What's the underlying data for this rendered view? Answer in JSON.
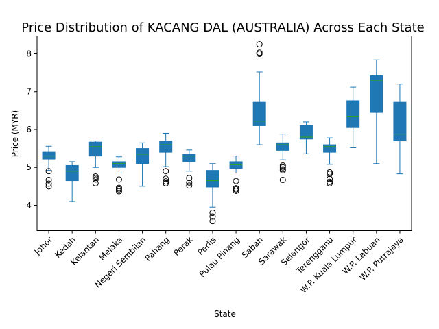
{
  "chart_data": {
    "type": "box",
    "title": "Price Distribution of KACANG DAL (AUSTRALIA) Across Each State",
    "xlabel": "State",
    "ylabel": "Price (MYR)",
    "ylim": [
      3.33,
      8.47
    ],
    "yticks": [
      4,
      5,
      6,
      7,
      8
    ],
    "grid": false,
    "colors": {
      "box": "#1f77b4",
      "median": "#2ca02c",
      "whisker": "#1f77b4",
      "flier": "#000000"
    },
    "categories": [
      "Johor",
      "Kedah",
      "Kelantan",
      "Melaka",
      "Negeri Sembilan",
      "Pahang",
      "Perak",
      "Perlis",
      "Pulau Pinang",
      "Sabah",
      "Sarawak",
      "Selangor",
      "Terengganu",
      "W.P. Kuala Lumpur",
      "W.P. Labuan",
      "W.P. Putrajaya"
    ],
    "boxes": [
      {
        "whislo": 4.92,
        "q1": 5.22,
        "med": 5.3,
        "q3": 5.4,
        "whishi": 5.56,
        "fliers": [
          4.9,
          4.67,
          4.57,
          4.5
        ]
      },
      {
        "whislo": 4.1,
        "q1": 4.65,
        "med": 4.9,
        "q3": 5.05,
        "whishi": 5.15,
        "fliers": []
      },
      {
        "whislo": 5.0,
        "q1": 5.3,
        "med": 5.55,
        "q3": 5.67,
        "whishi": 5.7,
        "fliers": [
          4.76,
          4.72,
          4.68,
          4.58
        ]
      },
      {
        "whislo": 4.85,
        "q1": 5.0,
        "med": 5.1,
        "q3": 5.15,
        "whishi": 5.28,
        "fliers": [
          4.68,
          4.46,
          4.42,
          4.37
        ]
      },
      {
        "whislo": 4.5,
        "q1": 5.1,
        "med": 5.35,
        "q3": 5.5,
        "whishi": 5.65,
        "fliers": []
      },
      {
        "whislo": 5.02,
        "q1": 5.4,
        "med": 5.6,
        "q3": 5.7,
        "whishi": 5.9,
        "fliers": [
          4.9,
          4.7,
          4.63,
          4.58
        ]
      },
      {
        "whislo": 4.9,
        "q1": 5.15,
        "med": 5.3,
        "q3": 5.35,
        "whishi": 5.46,
        "fliers": [
          4.72,
          4.6,
          4.52
        ]
      },
      {
        "whislo": 3.95,
        "q1": 4.48,
        "med": 4.65,
        "q3": 4.92,
        "whishi": 5.1,
        "fliers": [
          3.8,
          3.7,
          3.58
        ]
      },
      {
        "whislo": 4.85,
        "q1": 4.97,
        "med": 5.07,
        "q3": 5.15,
        "whishi": 5.3,
        "fliers": [
          4.64,
          4.45,
          4.42,
          4.38
        ]
      },
      {
        "whislo": 5.6,
        "q1": 6.1,
        "med": 6.22,
        "q3": 6.72,
        "whishi": 7.52,
        "fliers": [
          8.25,
          8.03,
          8.0
        ]
      },
      {
        "whislo": 5.2,
        "q1": 5.45,
        "med": 5.6,
        "q3": 5.65,
        "whishi": 5.88,
        "fliers": [
          5.05,
          5.0,
          4.95,
          4.92,
          4.67
        ]
      },
      {
        "whislo": 5.36,
        "q1": 5.75,
        "med": 5.8,
        "q3": 6.1,
        "whishi": 6.2,
        "fliers": []
      },
      {
        "whislo": 5.08,
        "q1": 5.4,
        "med": 5.55,
        "q3": 5.6,
        "whishi": 5.78,
        "fliers": [
          4.87,
          4.83,
          4.7,
          4.62,
          4.58
        ]
      },
      {
        "whislo": 5.52,
        "q1": 6.05,
        "med": 6.35,
        "q3": 6.76,
        "whishi": 7.12,
        "fliers": []
      },
      {
        "whislo": 5.1,
        "q1": 6.45,
        "med": 7.3,
        "q3": 7.42,
        "whishi": 7.84,
        "fliers": []
      },
      {
        "whislo": 4.83,
        "q1": 5.7,
        "med": 5.88,
        "q3": 6.72,
        "whishi": 7.2,
        "fliers": []
      }
    ]
  }
}
